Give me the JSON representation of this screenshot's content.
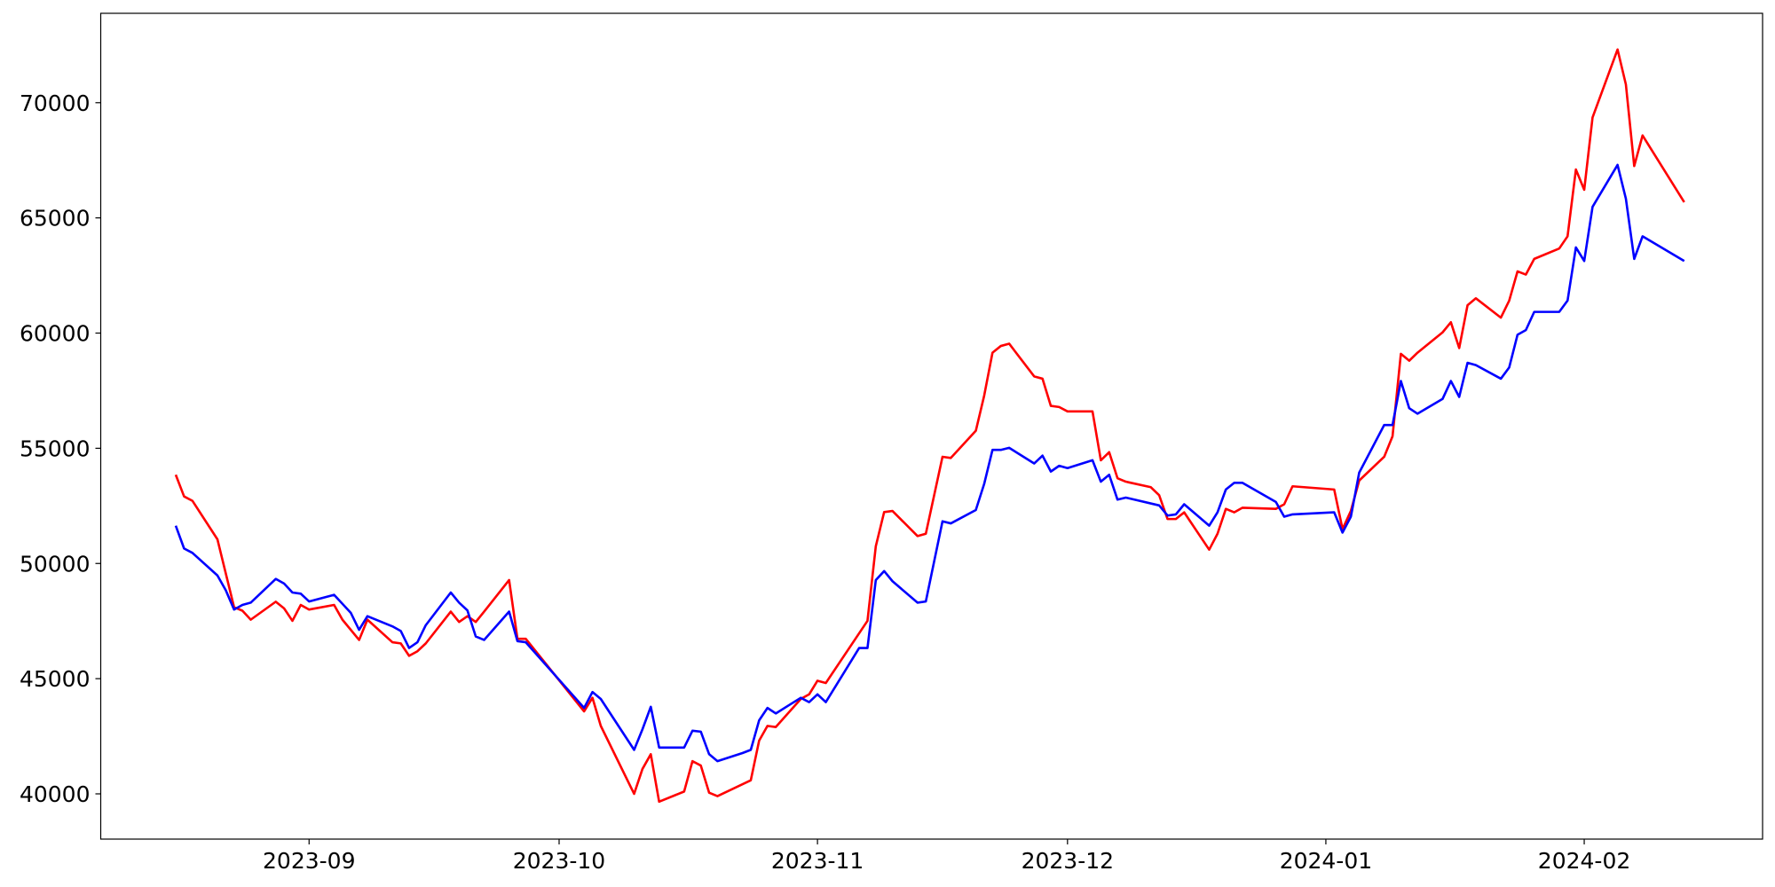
{
  "chart_data": {
    "type": "line",
    "xlim": [
      6.0,
      205.4
    ],
    "ylim": [
      38036,
      73880
    ],
    "xticks": [
      {
        "value": 31,
        "label": "2023-09"
      },
      {
        "value": 61,
        "label": "2023-10"
      },
      {
        "value": 92,
        "label": "2023-11"
      },
      {
        "value": 122,
        "label": "2023-12"
      },
      {
        "value": 153,
        "label": "2024-01"
      },
      {
        "value": 184,
        "label": "2024-02"
      }
    ],
    "yticks": [
      40000,
      45000,
      50000,
      55000,
      60000,
      65000,
      70000
    ],
    "grid": false,
    "series": [
      {
        "color": "#ff0000",
        "x": [
          15,
          16,
          17,
          20,
          22,
          23,
          24,
          27,
          28,
          29,
          30,
          31,
          34,
          35,
          37,
          38,
          41,
          42,
          43,
          44,
          45,
          48,
          49,
          50,
          51,
          52,
          55,
          56,
          57,
          64,
          65,
          66,
          70,
          71,
          72,
          73,
          76,
          77,
          78,
          79,
          80,
          84,
          85,
          86,
          87,
          90,
          91,
          92,
          93,
          98,
          99,
          100,
          101,
          104,
          105,
          107,
          108,
          111,
          112,
          113,
          114,
          115,
          118,
          119,
          120,
          121,
          122,
          125,
          126,
          127,
          128,
          129,
          132,
          133,
          134,
          135,
          136,
          139,
          140,
          141,
          142,
          143,
          147,
          148,
          149,
          154,
          155,
          156,
          157,
          160,
          161,
          162,
          163,
          164,
          167,
          168,
          169,
          170,
          171,
          174,
          175,
          176,
          177,
          178,
          181,
          182,
          183,
          184,
          185,
          188,
          189,
          190,
          191,
          196
        ],
        "values": [
          53850,
          52910,
          52720,
          51050,
          48100,
          47950,
          47560,
          48340,
          48050,
          47510,
          48200,
          48000,
          48200,
          47560,
          46680,
          47560,
          46580,
          46530,
          45990,
          46190,
          46530,
          47910,
          47460,
          47710,
          47460,
          47910,
          49280,
          46730,
          46730,
          43580,
          44170,
          42950,
          40000,
          41080,
          41720,
          39660,
          40100,
          41420,
          41230,
          40050,
          39900,
          40590,
          42310,
          42950,
          42900,
          44120,
          44320,
          44910,
          44810,
          47510,
          50750,
          52230,
          52280,
          51190,
          51290,
          54630,
          54580,
          55760,
          57280,
          59150,
          59440,
          59540,
          58120,
          58020,
          56840,
          56790,
          56600,
          56600,
          54480,
          54830,
          53700,
          53550,
          53310,
          52960,
          51930,
          51930,
          52220,
          50600,
          51290,
          52370,
          52220,
          52420,
          52370,
          52570,
          53350,
          53210,
          51490,
          52280,
          53600,
          54630,
          55520,
          59100,
          58800,
          59150,
          60030,
          60470,
          59350,
          61210,
          61510,
          60670,
          61410,
          62680,
          62540,
          63220,
          63670,
          64200,
          67100,
          66220,
          69360,
          72310,
          70790,
          67250,
          68580,
          65680
        ]
      },
      {
        "color": "#0000ff",
        "x": [
          15,
          16,
          17,
          20,
          21,
          22,
          23,
          24,
          27,
          28,
          29,
          30,
          31,
          34,
          36,
          37,
          38,
          41,
          42,
          43,
          44,
          45,
          48,
          49,
          50,
          51,
          52,
          55,
          56,
          57,
          64,
          65,
          66,
          70,
          71,
          72,
          73,
          76,
          77,
          78,
          79,
          80,
          83,
          84,
          85,
          86,
          87,
          90,
          91,
          92,
          93,
          97,
          98,
          99,
          100,
          101,
          104,
          105,
          107,
          108,
          111,
          112,
          113,
          114,
          115,
          118,
          119,
          120,
          121,
          122,
          125,
          126,
          127,
          128,
          129,
          133,
          134,
          135,
          136,
          139,
          140,
          141,
          142,
          143,
          147,
          148,
          149,
          154,
          155,
          156,
          157,
          160,
          161,
          162,
          163,
          164,
          167,
          168,
          169,
          170,
          171,
          174,
          175,
          176,
          177,
          178,
          181,
          182,
          183,
          184,
          185,
          188,
          189,
          190,
          191,
          196
        ],
        "values": [
          51640,
          50650,
          50460,
          49480,
          48840,
          48000,
          48200,
          48300,
          49330,
          49130,
          48740,
          48690,
          48350,
          48640,
          47860,
          47120,
          47710,
          47270,
          47070,
          46330,
          46580,
          47320,
          48740,
          48300,
          47960,
          46830,
          46680,
          47910,
          46630,
          46580,
          43730,
          44420,
          44120,
          41910,
          42800,
          43780,
          42010,
          42010,
          42740,
          42700,
          41720,
          41420,
          41770,
          41910,
          43190,
          43730,
          43490,
          44170,
          43980,
          44320,
          43980,
          46330,
          46330,
          49280,
          49670,
          49230,
          48300,
          48350,
          51830,
          51740,
          52320,
          53450,
          54930,
          54930,
          55020,
          54340,
          54680,
          53990,
          54240,
          54140,
          54480,
          53550,
          53850,
          52770,
          52860,
          52520,
          52080,
          52130,
          52570,
          51640,
          52220,
          53210,
          53500,
          53500,
          52670,
          52030,
          52130,
          52220,
          51340,
          52030,
          53940,
          56010,
          56010,
          57920,
          56740,
          56500,
          57140,
          57920,
          57230,
          58710,
          58610,
          58020,
          58510,
          59930,
          60130,
          60920,
          60920,
          61410,
          63720,
          63130,
          65480,
          67300,
          65830,
          63220,
          64200,
          63130
        ]
      }
    ]
  }
}
